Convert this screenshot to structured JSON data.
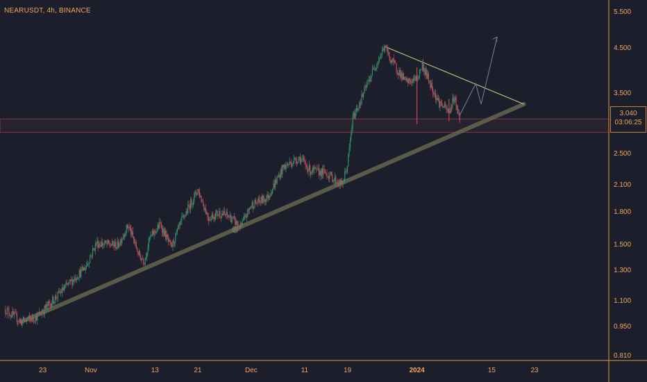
{
  "header": {
    "symbol_label": "NEARUSDT, 4h, BINANCE"
  },
  "price_tag": {
    "price": "3.040",
    "countdown": "03:06:25"
  },
  "colors": {
    "background": "#1c1e2b",
    "up_candle": "#2f8f6a",
    "down_candle": "#c84a5a",
    "axis_text": "#f2a65a",
    "support_zone": "#c24a58",
    "trendline": "#8a8a6a",
    "resistance_line": "#b8b87a",
    "projection_arrow": "#6a8aa0"
  },
  "chart_data": {
    "type": "candlestick",
    "symbol": "NEARUSDT",
    "interval": "4h",
    "exchange": "BINANCE",
    "y_scale": "log",
    "ylim": [
      0.79,
      5.9
    ],
    "y_ticks": [
      "5.500",
      "4.500",
      "3.500",
      "3.040",
      "2.500",
      "2.100",
      "1.800",
      "1.500",
      "1.300",
      "1.100",
      "0.950",
      "0.810"
    ],
    "x_ticks": [
      "23",
      "Nov",
      "13",
      "21",
      "Dec",
      "11",
      "19",
      "2024",
      "15",
      "23"
    ],
    "last_price": 3.04,
    "path_points": [
      [
        "2023-10-16",
        1.05
      ],
      [
        "2023-10-19",
        0.98
      ],
      [
        "2023-10-22",
        1.01
      ],
      [
        "2023-10-27",
        1.18
      ],
      [
        "2023-10-31",
        1.33
      ],
      [
        "2023-11-02",
        1.52
      ],
      [
        "2023-11-06",
        1.5
      ],
      [
        "2023-11-08",
        1.68
      ],
      [
        "2023-11-10",
        1.42
      ],
      [
        "2023-11-11",
        1.38
      ],
      [
        "2023-11-12",
        1.56
      ],
      [
        "2023-11-14",
        1.69
      ],
      [
        "2023-11-16",
        1.48
      ],
      [
        "2023-11-18",
        1.72
      ],
      [
        "2023-11-21",
        2.05
      ],
      [
        "2023-11-23",
        1.75
      ],
      [
        "2023-11-25",
        1.8
      ],
      [
        "2023-11-27",
        1.76
      ],
      [
        "2023-11-29",
        1.66
      ],
      [
        "2023-12-01",
        1.88
      ],
      [
        "2023-12-04",
        1.96
      ],
      [
        "2023-12-07",
        2.32
      ],
      [
        "2023-12-10",
        2.45
      ],
      [
        "2023-12-12",
        2.28
      ],
      [
        "2023-12-15",
        2.25
      ],
      [
        "2023-12-18",
        2.1
      ],
      [
        "2023-12-19",
        2.35
      ],
      [
        "2023-12-20",
        3.05
      ],
      [
        "2023-12-22",
        3.5
      ],
      [
        "2023-12-24",
        4.05
      ],
      [
        "2023-12-26",
        4.55
      ],
      [
        "2023-12-27",
        4.25
      ],
      [
        "2023-12-30",
        3.72
      ],
      [
        "2024-01-01",
        3.8
      ],
      [
        "2024-01-02",
        4.1
      ],
      [
        "2024-01-05",
        3.35
      ],
      [
        "2024-01-07",
        3.15
      ],
      [
        "2024-01-08",
        3.45
      ],
      [
        "2024-01-09",
        3.04
      ]
    ],
    "annotations": {
      "support_zone": [
        2.82,
        3.04
      ],
      "rising_trendline": [
        [
          "2023-10-19",
          0.98
        ],
        [
          "2024-01-21",
          3.3
        ]
      ],
      "descending_trendline": [
        [
          "2023-12-26",
          4.55
        ],
        [
          "2024-01-21",
          3.3
        ]
      ],
      "projected_path": [
        [
          "2024-01-09",
          3.1
        ],
        [
          "2024-01-12",
          3.7
        ],
        [
          "2024-01-13",
          3.3
        ],
        [
          "2024-01-16",
          4.8
        ]
      ]
    }
  }
}
